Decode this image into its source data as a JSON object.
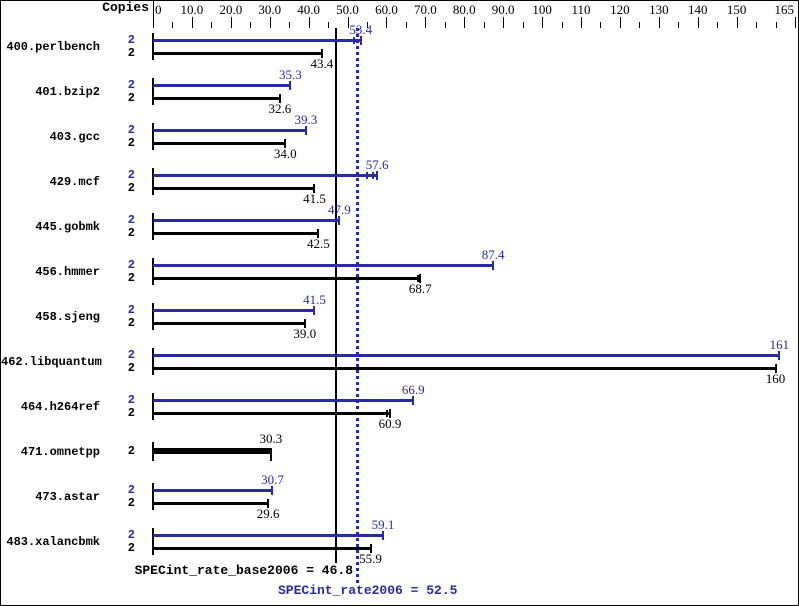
{
  "header": {
    "copies_label": "Copies"
  },
  "colors": {
    "peak_blue": "#2a2aa4",
    "base_black": "#000000",
    "background": "#ffffff"
  },
  "axis": {
    "min": 0,
    "max": 165,
    "tick_step_minor": 5,
    "tick_step_major": 10,
    "labels": [
      {
        "text": "0",
        "value": 0
      },
      {
        "text": "10.0",
        "value": 10
      },
      {
        "text": "20.0",
        "value": 20
      },
      {
        "text": "30.0",
        "value": 30
      },
      {
        "text": "40.0",
        "value": 40
      },
      {
        "text": "50.0",
        "value": 50
      },
      {
        "text": "60.0",
        "value": 60
      },
      {
        "text": "70.0",
        "value": 70
      },
      {
        "text": "80.0",
        "value": 80
      },
      {
        "text": "90.0",
        "value": 90
      },
      {
        "text": "100",
        "value": 100
      },
      {
        "text": "110",
        "value": 110
      },
      {
        "text": "120",
        "value": 120
      },
      {
        "text": "130",
        "value": 130
      },
      {
        "text": "140",
        "value": 140
      },
      {
        "text": "150",
        "value": 150
      },
      {
        "text": "165",
        "value": 165
      }
    ]
  },
  "chart_data": {
    "type": "bar",
    "orientation": "horizontal",
    "title": "",
    "xlabel": "",
    "ylabel": "Copies",
    "xlim": [
      0,
      165
    ],
    "grid": false,
    "x_tick_labels": [
      "0",
      "10.0",
      "20.0",
      "30.0",
      "40.0",
      "50.0",
      "60.0",
      "70.0",
      "80.0",
      "90.0",
      "100",
      "110",
      "120",
      "130",
      "140",
      "150",
      "165"
    ],
    "categories": [
      "400.perlbench",
      "401.bzip2",
      "403.gcc",
      "429.mcf",
      "445.gobmk",
      "456.hmmer",
      "458.sjeng",
      "462.libquantum",
      "464.h264ref",
      "471.omnetpp",
      "473.astar",
      "483.xalancbmk"
    ],
    "copies_per_benchmark": [
      2,
      2,
      2,
      2,
      2,
      2,
      2,
      2,
      2,
      2,
      2,
      2
    ],
    "series": [
      {
        "name": "SPECint_rate2006 (peak)",
        "color": "#2a2aa4",
        "values": [
          53.4,
          35.3,
          39.3,
          57.6,
          47.9,
          87.4,
          41.5,
          161,
          66.9,
          30.3,
          30.7,
          59.1
        ]
      },
      {
        "name": "SPECint_rate_base2006 (base)",
        "color": "#000000",
        "values": [
          43.4,
          32.6,
          34.0,
          41.5,
          42.5,
          68.7,
          39.0,
          160,
          60.9,
          30.3,
          29.6,
          55.9
        ]
      }
    ],
    "notes": "471.omnetpp base and peak are equal (30.3) and drawn as one thick black bar",
    "reference_lines": [
      {
        "label": "SPECint_rate_base2006 = 46.8",
        "value": 46.8,
        "color": "#000000",
        "style": "solid"
      },
      {
        "label": "SPECint_rate2006 = 52.5",
        "value": 52.5,
        "color": "#2a2aa4",
        "style": "dotted"
      }
    ],
    "legend_position": "none"
  },
  "rows": [
    {
      "name": "400.perlbench",
      "merged": false,
      "copies_peak": "2",
      "copies_base": "2",
      "peak": 53.4,
      "peak_label": "53.4",
      "base": 43.4,
      "base_label": "43.4",
      "peak_runs": [
        51.4
      ],
      "base_runs": []
    },
    {
      "name": "401.bzip2",
      "merged": false,
      "copies_peak": "2",
      "copies_base": "2",
      "peak": 35.3,
      "peak_label": "35.3",
      "base": 32.6,
      "base_label": "32.6",
      "peak_runs": [],
      "base_runs": []
    },
    {
      "name": "403.gcc",
      "merged": false,
      "copies_peak": "2",
      "copies_base": "2",
      "peak": 39.3,
      "peak_label": "39.3",
      "base": 34.0,
      "base_label": "34.0",
      "peak_runs": [],
      "base_runs": []
    },
    {
      "name": "429.mcf",
      "merged": false,
      "copies_peak": "2",
      "copies_base": "2",
      "peak": 57.6,
      "peak_label": "57.6",
      "base": 41.5,
      "base_label": "41.5",
      "peak_runs": [
        54.8,
        56.4
      ],
      "base_runs": []
    },
    {
      "name": "445.gobmk",
      "merged": false,
      "copies_peak": "2",
      "copies_base": "2",
      "peak": 47.9,
      "peak_label": "47.9",
      "base": 42.5,
      "base_label": "42.5",
      "peak_runs": [],
      "base_runs": []
    },
    {
      "name": "456.hmmer",
      "merged": false,
      "copies_peak": "2",
      "copies_base": "2",
      "peak": 87.4,
      "peak_label": "87.4",
      "base": 68.7,
      "base_label": "68.7",
      "peak_runs": [],
      "base_runs": [
        67.8
      ]
    },
    {
      "name": "458.sjeng",
      "merged": false,
      "copies_peak": "2",
      "copies_base": "2",
      "peak": 41.5,
      "peak_label": "41.5",
      "base": 39.0,
      "base_label": "39.0",
      "peak_runs": [],
      "base_runs": []
    },
    {
      "name": "462.libquantum",
      "merged": false,
      "copies_peak": "2",
      "copies_base": "2",
      "peak": 161,
      "peak_label": "161",
      "base": 160,
      "base_label": "160",
      "peak_runs": [],
      "base_runs": []
    },
    {
      "name": "464.h264ref",
      "merged": false,
      "copies_peak": "2",
      "copies_base": "2",
      "peak": 66.9,
      "peak_label": "66.9",
      "base": 60.9,
      "base_label": "60.9",
      "peak_runs": [],
      "base_runs": [
        60.0
      ]
    },
    {
      "name": "471.omnetpp",
      "merged": true,
      "copies_peak": "2",
      "copies_base": "2",
      "peak": 30.3,
      "peak_label": "30.3",
      "base": 30.3,
      "base_label": "30.3",
      "peak_runs": [],
      "base_runs": []
    },
    {
      "name": "473.astar",
      "merged": false,
      "copies_peak": "2",
      "copies_base": "2",
      "peak": 30.7,
      "peak_label": "30.7",
      "base": 29.6,
      "base_label": "29.6",
      "peak_runs": [],
      "base_runs": []
    },
    {
      "name": "483.xalancbmk",
      "merged": false,
      "copies_peak": "2",
      "copies_base": "2",
      "peak": 59.1,
      "peak_label": "59.1",
      "base": 55.9,
      "base_label": "55.9",
      "peak_runs": [],
      "base_runs": []
    }
  ],
  "footer": {
    "base_result_label": "SPECint_rate_base2006 = 46.8",
    "peak_result_label": "SPECint_rate2006 = 52.5"
  }
}
